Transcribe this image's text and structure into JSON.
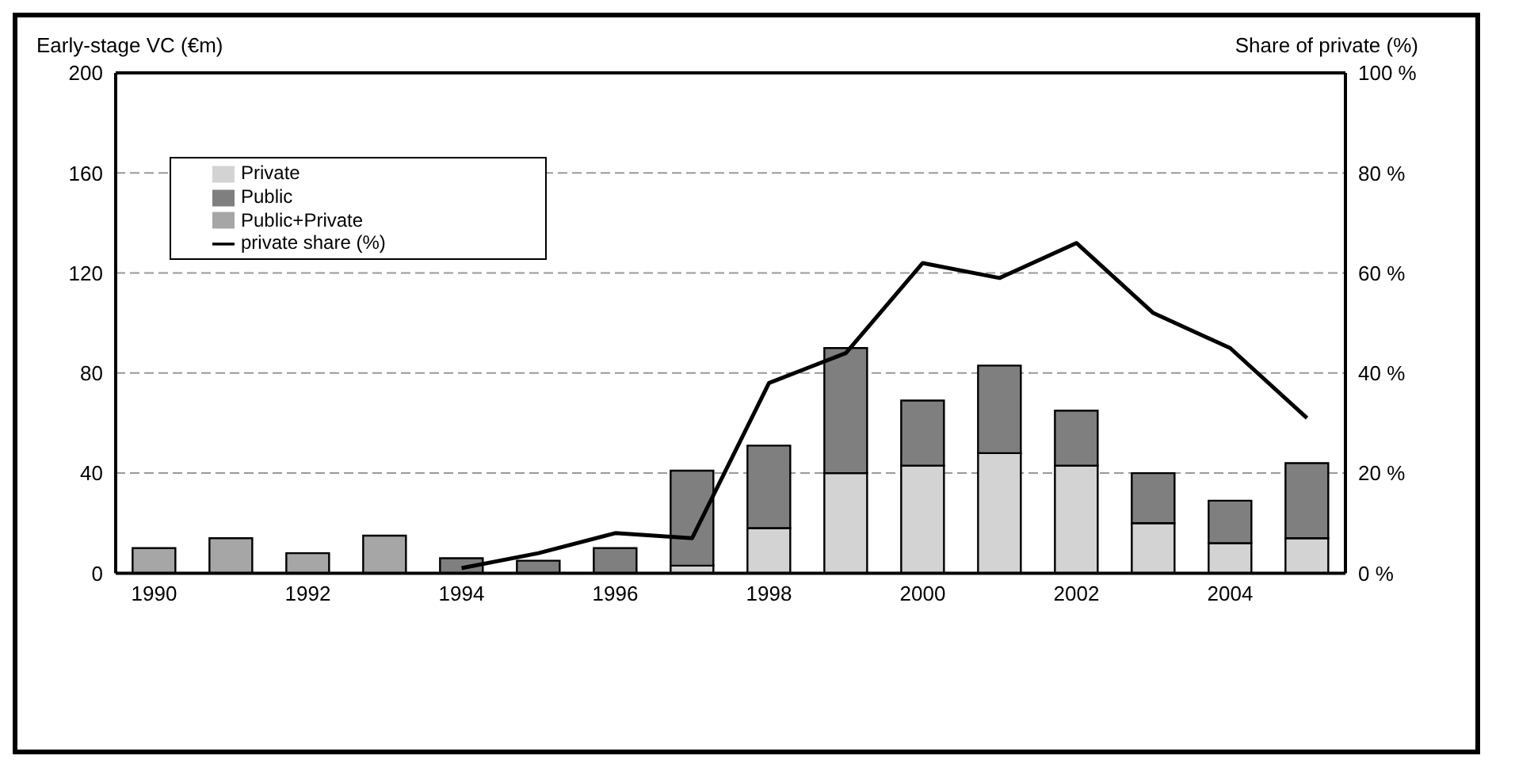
{
  "chart_data": {
    "type": "bar",
    "stacked": true,
    "categories": [
      "1990",
      null,
      "1992",
      null,
      "1994",
      null,
      "1996",
      null,
      "1998",
      null,
      "2000",
      null,
      "2002",
      null,
      "2004",
      null
    ],
    "series": [
      {
        "name": "Private",
        "color": "#d3d3d3",
        "values": [
          null,
          null,
          null,
          null,
          null,
          null,
          null,
          3,
          18,
          40,
          43,
          48,
          43,
          20,
          12,
          14
        ]
      },
      {
        "name": "Public",
        "color": "#7f7f7f",
        "values": [
          null,
          null,
          null,
          null,
          6,
          5,
          10,
          38,
          33,
          50,
          26,
          35,
          22,
          20,
          17,
          30
        ]
      },
      {
        "name": "Public+Private",
        "color": "#a6a6a6",
        "values": [
          10,
          14,
          8,
          15,
          null,
          null,
          null,
          null,
          null,
          null,
          null,
          null,
          null,
          null,
          null,
          null
        ]
      },
      {
        "name": "private share (%)",
        "type": "line",
        "axis": "y2",
        "color": "#000000",
        "values": [
          null,
          null,
          null,
          null,
          1,
          4,
          8,
          7,
          38,
          44,
          62,
          59,
          66,
          52,
          45,
          31
        ]
      }
    ],
    "ylabel": "Early-stage VC (€m)",
    "y2label": "Share of private (%)",
    "ylim": [
      0,
      200
    ],
    "yticks": [
      0,
      40,
      80,
      120,
      160,
      200
    ],
    "y2lim": [
      0,
      100
    ],
    "y2ticks": [
      {
        "value": 0,
        "label": "0 %"
      },
      {
        "value": 20,
        "label": "20 %"
      },
      {
        "value": 40,
        "label": "40 %"
      },
      {
        "value": 60,
        "label": "60 %"
      },
      {
        "value": 80,
        "label": "80 %"
      },
      {
        "value": 100,
        "label": "100 %"
      }
    ],
    "grid": "y",
    "legend": "top left",
    "marker": "none",
    "line_style": "solid"
  }
}
